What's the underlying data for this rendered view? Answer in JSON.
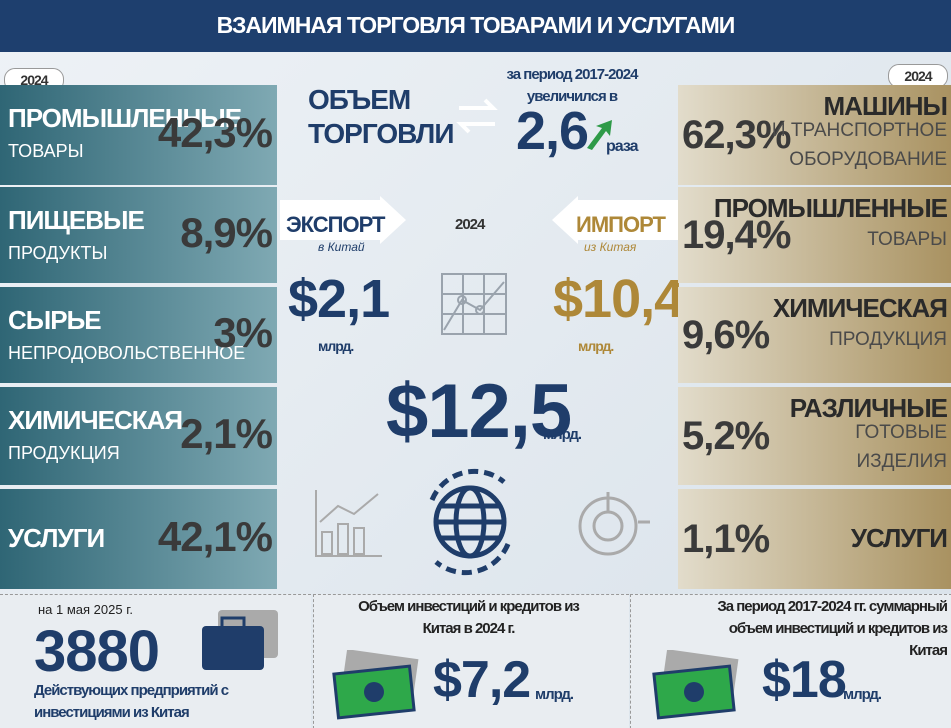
{
  "header": {
    "title": "ВЗАИМНАЯ ТОРГОВЛЯ ТОВАРАМИ И УСЛУГАМИ"
  },
  "left": {
    "year": "2024",
    "items": [
      {
        "lines": [
          "ПРОМЫШЛЕННЫЕ",
          "ТОВАРЫ"
        ],
        "value": "42,3%"
      },
      {
        "lines": [
          "ПИЩЕВЫЕ",
          "ПРОДУКТЫ"
        ],
        "value": "8,9%"
      },
      {
        "lines": [
          "СЫРЬЕ",
          "НЕПРОДОВОЛЬСТВЕННОЕ"
        ],
        "value": "3%"
      },
      {
        "lines": [
          "ХИМИЧЕСКАЯ",
          "ПРОДУКЦИЯ"
        ],
        "value": "2,1%"
      },
      {
        "lines": [
          "УСЛУГИ"
        ],
        "value": "42,1%"
      }
    ]
  },
  "right": {
    "year": "2024",
    "items": [
      {
        "lines": [
          "МАШИНЫ",
          "И ТРАНСПОРТНОЕ",
          "ОБОРУДОВАНИЕ"
        ],
        "value": "62,3%"
      },
      {
        "lines": [
          "ПРОМЫШЛЕННЫЕ",
          "ТОВАРЫ"
        ],
        "value": "19,4%"
      },
      {
        "lines": [
          "ХИМИЧЕСКАЯ",
          "ПРОДУКЦИЯ"
        ],
        "value": "9,6%"
      },
      {
        "lines": [
          "РАЗЛИЧНЫЕ",
          "ГОТОВЫЕ",
          "ИЗДЕЛИЯ"
        ],
        "value": "5,2%"
      },
      {
        "lines": [
          "УСЛУГИ"
        ],
        "value": "1,1%"
      }
    ]
  },
  "center": {
    "volume": [
      "ОБЪЕМ",
      "ТОРГОВЛИ"
    ],
    "growth": {
      "period": "за период 2017-2024",
      "text": "увеличился в",
      "factor": "2,6",
      "unit": "раза"
    },
    "year": "2024",
    "export": {
      "label": "ЭКСПОРТ",
      "sub": "в Китай",
      "value": "$2,1",
      "unit": "млрд."
    },
    "import": {
      "label": "ИМПОРТ",
      "sub": "из Китая",
      "value": "$10,4",
      "unit": "млрд."
    },
    "total": {
      "value": "$12,5",
      "unit": "млрд."
    }
  },
  "bottom": [
    {
      "note": "на 1 мая 2025 г.",
      "value": "3880",
      "caption": [
        "Действующих предприятий с",
        "инвестициями из Китая"
      ]
    },
    {
      "caption": [
        "Объем инвестиций и кредитов из",
        "Китая в 2024 г."
      ],
      "value": "$7,2",
      "unit": "млрд."
    },
    {
      "caption": [
        "За период 2017-2024 гг. суммарный",
        "объем инвестиций и кредитов из",
        "Китая"
      ],
      "value": "$18",
      "unit": "млрд."
    }
  ]
}
